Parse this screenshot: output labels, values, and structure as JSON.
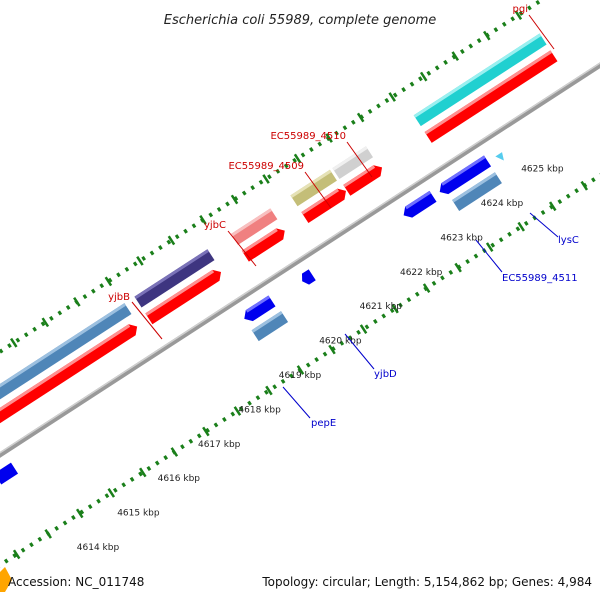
{
  "title": "Escherichia coli 55989, complete genome",
  "footer": {
    "accession": "Accession: NC_011748",
    "summary": "Topology: circular; Length: 5,154,862 bp; Genes: 4,984"
  },
  "axis": {
    "unit": "kbp",
    "labels": [
      "4614 kbp",
      "4615 kbp",
      "4616 kbp",
      "4617 kbp",
      "4618 kbp",
      "4619 kbp",
      "4620 kbp",
      "4621 kbp",
      "4622 kbp",
      "4623 kbp",
      "4624 kbp",
      "4625 kbp"
    ]
  },
  "gene_labels": [
    {
      "text": "pgi",
      "strand": "forward",
      "color": "#cc0000"
    },
    {
      "text": "EC55989_4510",
      "strand": "forward",
      "color": "#cc0000"
    },
    {
      "text": "EC55989_4509",
      "strand": "forward",
      "color": "#cc0000"
    },
    {
      "text": "yjbC",
      "strand": "forward",
      "color": "#cc0000"
    },
    {
      "text": "yjbB",
      "strand": "forward",
      "color": "#cc0000"
    },
    {
      "text": "lysC",
      "strand": "reverse",
      "color": "#0000cc"
    },
    {
      "text": "EC55989_4511",
      "strand": "reverse",
      "color": "#0000cc"
    },
    {
      "text": "yjbD",
      "strand": "reverse",
      "color": "#0000cc"
    },
    {
      "text": "pepE",
      "strand": "reverse",
      "color": "#0000cc"
    }
  ],
  "colors": {
    "forward_cds": "#ff0000",
    "reverse_cds": "#0000ee",
    "backbone": "#999999",
    "grid": "#1a7f1a",
    "steelblue": "#4f86b8",
    "navy": "#3e3580",
    "khaki": "#c4be78",
    "salmon": "#f08080",
    "lightgray": "#d0d0d0",
    "cyan": "#20d0d0",
    "orange": "#ffa500"
  }
}
